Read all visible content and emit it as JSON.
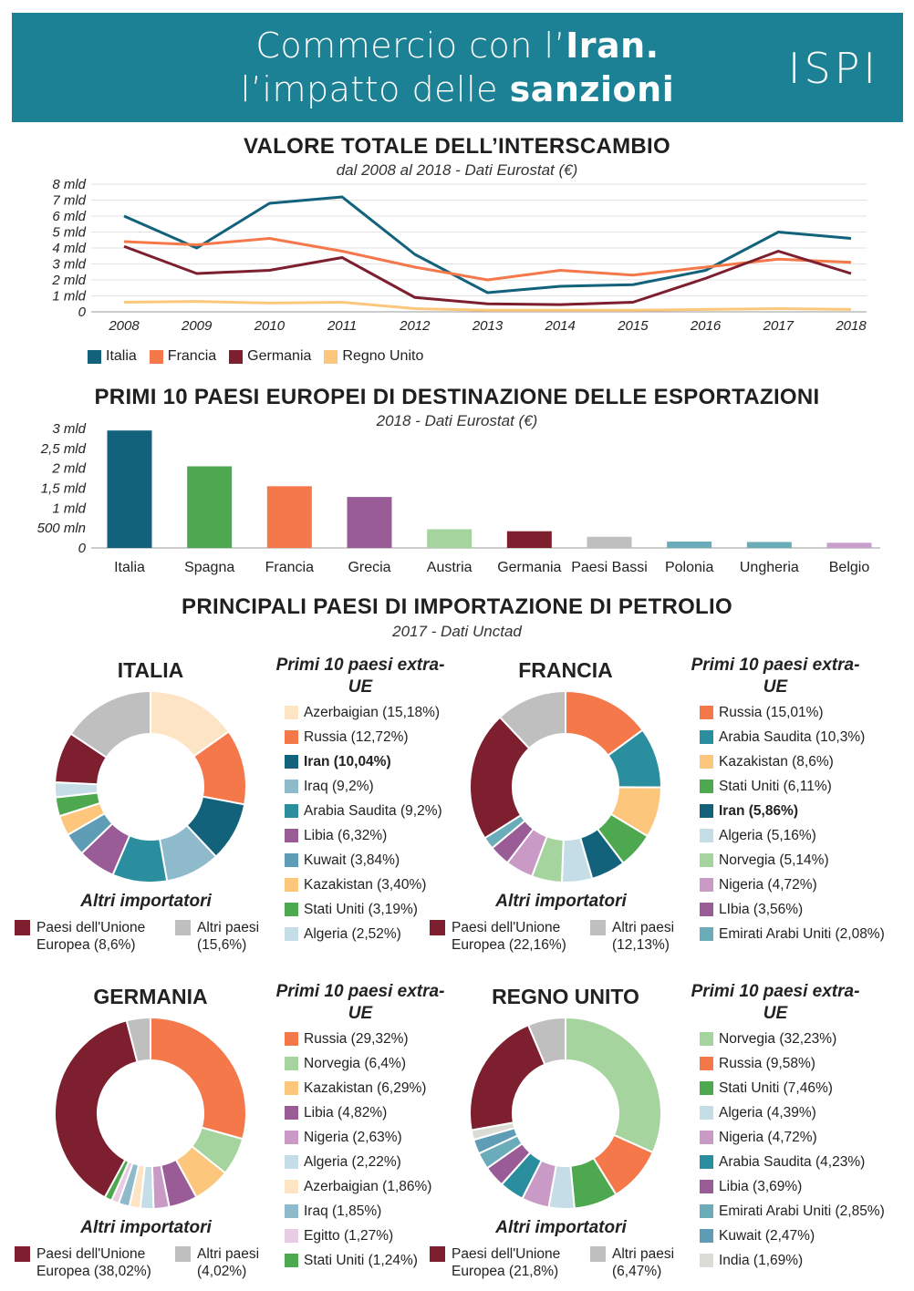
{
  "header": {
    "line1_pre": "Commercio con l’",
    "line1_bold": "Iran.",
    "line2_pre": "l’impatto delle ",
    "line2_bold": "sanzioni",
    "logo": "ISPI",
    "bg": "#1c8194"
  },
  "section1": {
    "title": "VALORE TOTALE DELL’INTERSCAMBIO",
    "subtitle": "dal 2008 al 2018 - Dati Eurostat (€)"
  },
  "section2": {
    "title": "PRIMI 10 PAESI EUROPEI DI DESTINAZIONE DELLE ESPORTAZIONI",
    "subtitle": "2018 - Dati Eurostat (€)"
  },
  "section3": {
    "title": "PRINCIPALI PAESI DI IMPORTAZIONE DI PETROLIO",
    "subtitle": "2017 - Dati Unctad"
  },
  "chart_data": [
    {
      "type": "line",
      "title": "VALORE TOTALE DELL’INTERSCAMBIO",
      "subtitle": "dal 2008 al 2018 - Dati Eurostat (€)",
      "x": [
        "2008",
        "2009",
        "2010",
        "2011",
        "2012",
        "2013",
        "2014",
        "2015",
        "2016",
        "2017",
        "2018"
      ],
      "ylim": [
        0,
        8
      ],
      "yticks": [
        "0",
        "1 mld",
        "2 mld",
        "3 mld",
        "4 mld",
        "5 mld",
        "6 mld",
        "7 mld",
        "8 mld"
      ],
      "grid": true,
      "legend": "bottom-left",
      "series": [
        {
          "name": "Italia",
          "color": "#11627a",
          "values": [
            6.0,
            4.0,
            6.8,
            7.2,
            3.6,
            1.2,
            1.6,
            1.7,
            2.6,
            5.0,
            4.6
          ]
        },
        {
          "name": "Francia",
          "color": "#f4784a",
          "values": [
            4.4,
            4.2,
            4.6,
            3.8,
            2.8,
            2.0,
            2.6,
            2.3,
            2.8,
            3.3,
            3.1
          ]
        },
        {
          "name": "Germania",
          "color": "#7d1f2e",
          "values": [
            4.1,
            2.4,
            2.6,
            3.4,
            0.9,
            0.5,
            0.45,
            0.6,
            2.1,
            3.8,
            2.4
          ]
        },
        {
          "name": "Regno Unito",
          "color": "#fcc77d",
          "values": [
            0.6,
            0.65,
            0.55,
            0.6,
            0.2,
            0.1,
            0.1,
            0.1,
            0.15,
            0.2,
            0.15
          ]
        }
      ]
    },
    {
      "type": "bar",
      "title": "PRIMI 10 PAESI EUROPEI DI DESTINAZIONE DELLE ESPORTAZIONI",
      "subtitle": "2018 - Dati Eurostat (€)",
      "categories": [
        "Italia",
        "Spagna",
        "Francia",
        "Grecia",
        "Austria",
        "Germania",
        "Paesi Bassi",
        "Polonia",
        "Ungheria",
        "Belgio"
      ],
      "values": [
        2.95,
        2.05,
        1.55,
        1.28,
        0.47,
        0.42,
        0.28,
        0.16,
        0.15,
        0.13
      ],
      "colors": [
        "#11627a",
        "#4ea84f",
        "#f4784a",
        "#9a5c96",
        "#a6d49f",
        "#7d1f2e",
        "#bfbfbf",
        "#6aacba",
        "#6aacba",
        "#c9a0cd"
      ],
      "ylim": [
        0,
        3
      ],
      "yticks": [
        "0",
        "500 mln",
        "1 mld",
        "1,5 mld",
        "2 mld",
        "2,5 mld",
        "3 mld"
      ]
    },
    {
      "type": "pie",
      "title": "ITALIA",
      "list_title": "Primi 10 paesi extra-UE",
      "slices": [
        {
          "label": "Azerbaigian (15,18%)",
          "value": 15.18,
          "color": "#fde4c4"
        },
        {
          "label": "Russia (12,72%)",
          "value": 12.72,
          "color": "#f4784a"
        },
        {
          "label": "Iran (10,04%)",
          "value": 10.04,
          "color": "#11627a",
          "bold": true
        },
        {
          "label": "Iraq (9,2%)",
          "value": 9.2,
          "color": "#8ebacc"
        },
        {
          "label": "Arabia Saudita (9,2%)",
          "value": 9.2,
          "color": "#2a8e9e"
        },
        {
          "label": "Libia (6,32%)",
          "value": 6.32,
          "color": "#9a5c96"
        },
        {
          "label": "Kuwait (3,84%)",
          "value": 3.84,
          "color": "#5f9cb5"
        },
        {
          "label": "Kazakistan (3,40%)",
          "value": 3.4,
          "color": "#fcc77d"
        },
        {
          "label": "Stati Uniti (3,19%)",
          "value": 3.19,
          "color": "#4ea84f"
        },
        {
          "label": "Algeria (2,52%)",
          "value": 2.52,
          "color": "#c5dde6"
        }
      ],
      "others_title": "Altri importatori",
      "others": [
        {
          "label": "Paesi dell'Unione\nEuropea (8,6%)",
          "value": 8.6,
          "color": "#7d1f2e"
        },
        {
          "label": "Altri paesi\n(15,6%)",
          "value": 15.6,
          "color": "#bfbfbf"
        }
      ]
    },
    {
      "type": "pie",
      "title": "FRANCIA",
      "list_title": "Primi 10 paesi extra-UE",
      "slices": [
        {
          "label": "Russia (15,01%)",
          "value": 15.01,
          "color": "#f4784a"
        },
        {
          "label": "Arabia Saudita (10,3%)",
          "value": 10.3,
          "color": "#2a8e9e"
        },
        {
          "label": "Kazakistan (8,6%)",
          "value": 8.6,
          "color": "#fcc77d"
        },
        {
          "label": "Stati Uniti (6,11%)",
          "value": 6.11,
          "color": "#4ea84f"
        },
        {
          "label": "Iran (5,86%)",
          "value": 5.86,
          "color": "#11627a",
          "bold": true
        },
        {
          "label": "Algeria (5,16%)",
          "value": 5.16,
          "color": "#c5dde6"
        },
        {
          "label": "Norvegia (5,14%)",
          "value": 5.14,
          "color": "#a6d49f"
        },
        {
          "label": "Nigeria (4,72%)",
          "value": 4.72,
          "color": "#c99ac5"
        },
        {
          "label": "LIbia (3,56%)",
          "value": 3.56,
          "color": "#9a5c96"
        },
        {
          "label": "Emirati Arabi Uniti (2,08%)",
          "value": 2.08,
          "color": "#6aacba"
        }
      ],
      "others_title": "Altri importatori",
      "others": [
        {
          "label": "Paesi dell'Unione\nEuropea (22,16%)",
          "value": 22.16,
          "color": "#7d1f2e"
        },
        {
          "label": "Altri paesi\n(12,13%)",
          "value": 12.13,
          "color": "#bfbfbf"
        }
      ]
    },
    {
      "type": "pie",
      "title": "GERMANIA",
      "list_title": "Primi 10 paesi extra-UE",
      "slices": [
        {
          "label": "Russia (29,32%)",
          "value": 29.32,
          "color": "#f4784a"
        },
        {
          "label": "Norvegia (6,4%)",
          "value": 6.4,
          "color": "#a6d49f"
        },
        {
          "label": "Kazakistan (6,29%)",
          "value": 6.29,
          "color": "#fcc77d"
        },
        {
          "label": "Libia (4,82%)",
          "value": 4.82,
          "color": "#9a5c96"
        },
        {
          "label": "Nigeria (2,63%)",
          "value": 2.63,
          "color": "#c99ac5"
        },
        {
          "label": "Algeria (2,22%)",
          "value": 2.22,
          "color": "#c5dde6"
        },
        {
          "label": "Azerbaigian (1,86%)",
          "value": 1.86,
          "color": "#fde4c4"
        },
        {
          "label": "Iraq (1,85%)",
          "value": 1.85,
          "color": "#8ebacc"
        },
        {
          "label": "Egitto (1,27%)",
          "value": 1.27,
          "color": "#e8cce3"
        },
        {
          "label": "Stati Uniti (1,24%)",
          "value": 1.24,
          "color": "#4ea84f"
        }
      ],
      "others_title": "Altri importatori",
      "others": [
        {
          "label": "Paesi dell'Unione\nEuropea (38,02%)",
          "value": 38.02,
          "color": "#7d1f2e"
        },
        {
          "label": "Altri paesi\n(4,02%)",
          "value": 4.02,
          "color": "#bfbfbf"
        }
      ]
    },
    {
      "type": "pie",
      "title": "REGNO UNITO",
      "list_title": "Primi 10 paesi extra-UE",
      "slices": [
        {
          "label": "Norvegia (32,23%)",
          "value": 32.23,
          "color": "#a6d49f"
        },
        {
          "label": "Russia (9,58%)",
          "value": 9.58,
          "color": "#f4784a"
        },
        {
          "label": "Stati Uniti (7,46%)",
          "value": 7.46,
          "color": "#4ea84f"
        },
        {
          "label": "Algeria (4,39%)",
          "value": 4.39,
          "color": "#c5dde6"
        },
        {
          "label": "Nigeria (4,72%)",
          "value": 4.72,
          "color": "#c99ac5"
        },
        {
          "label": "Arabia Saudita (4,23%)",
          "value": 4.23,
          "color": "#2a8e9e"
        },
        {
          "label": "Libia (3,69%)",
          "value": 3.69,
          "color": "#9a5c96"
        },
        {
          "label": "Emirati Arabi Uniti (2,85%)",
          "value": 2.85,
          "color": "#6aacba"
        },
        {
          "label": "Kuwait (2,47%)",
          "value": 2.47,
          "color": "#5f9cb5"
        },
        {
          "label": "India (1,69%)",
          "value": 1.69,
          "color": "#dcdcd6"
        }
      ],
      "others_title": "Altri importatori",
      "others": [
        {
          "label": "Paesi dell'Unione\nEuropea (21,8%)",
          "value": 21.8,
          "color": "#7d1f2e"
        },
        {
          "label": "Altri paesi\n(6,47%)",
          "value": 6.47,
          "color": "#bfbfbf"
        }
      ]
    }
  ]
}
